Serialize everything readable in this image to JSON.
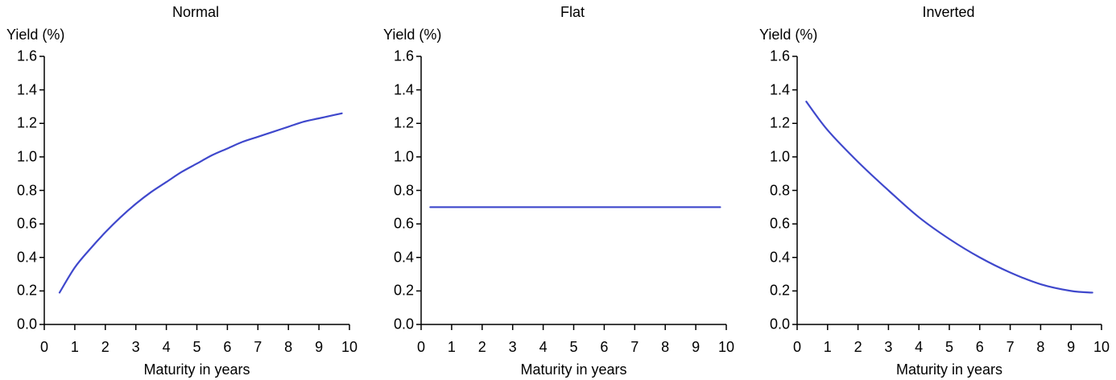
{
  "chart_data": [
    {
      "type": "line",
      "title": "Normal",
      "xlabel": "Maturity in years",
      "ylabel": "Yield (%)",
      "xlim": [
        0,
        10
      ],
      "ylim": [
        0,
        1.6
      ],
      "xticks": [
        "0",
        "1",
        "2",
        "3",
        "4",
        "5",
        "6",
        "7",
        "8",
        "9",
        "10"
      ],
      "yticks": [
        "0.0",
        "0.2",
        "0.4",
        "0.6",
        "0.8",
        "1.0",
        "1.2",
        "1.4",
        "1.6"
      ],
      "grid": false,
      "series": [
        {
          "color": "#3f48cc",
          "x": [
            0.5,
            1,
            1.5,
            2,
            2.5,
            3,
            3.5,
            4,
            4.5,
            5,
            5.5,
            6,
            6.5,
            7,
            7.5,
            8,
            8.5,
            9,
            9.5,
            9.75
          ],
          "y": [
            0.19,
            0.34,
            0.45,
            0.55,
            0.64,
            0.72,
            0.79,
            0.85,
            0.91,
            0.96,
            1.01,
            1.05,
            1.09,
            1.12,
            1.15,
            1.18,
            1.21,
            1.23,
            1.25,
            1.26
          ]
        }
      ]
    },
    {
      "type": "line",
      "title": "Flat",
      "xlabel": "Maturity in years",
      "ylabel": "Yield (%)",
      "xlim": [
        0,
        10
      ],
      "ylim": [
        0,
        1.6
      ],
      "xticks": [
        "0",
        "1",
        "2",
        "3",
        "4",
        "5",
        "6",
        "7",
        "8",
        "9",
        "10"
      ],
      "yticks": [
        "0.0",
        "0.2",
        "0.4",
        "0.6",
        "0.8",
        "1.0",
        "1.2",
        "1.4",
        "1.6"
      ],
      "grid": false,
      "series": [
        {
          "color": "#3f48cc",
          "x": [
            0.3,
            9.8
          ],
          "y": [
            0.7,
            0.7
          ]
        }
      ]
    },
    {
      "type": "line",
      "title": "Inverted",
      "xlabel": "Maturity in years",
      "ylabel": "Yield (%)",
      "xlim": [
        0,
        10
      ],
      "ylim": [
        0,
        1.6
      ],
      "xticks": [
        "0",
        "1",
        "2",
        "3",
        "4",
        "5",
        "6",
        "7",
        "8",
        "9",
        "10"
      ],
      "yticks": [
        "0.0",
        "0.2",
        "0.4",
        "0.6",
        "0.8",
        "1.0",
        "1.2",
        "1.4",
        "1.6"
      ],
      "grid": false,
      "series": [
        {
          "color": "#3f48cc",
          "x": [
            0.3,
            1,
            2,
            3,
            4,
            5,
            6,
            7,
            8,
            9,
            9.7
          ],
          "y": [
            1.33,
            1.16,
            0.97,
            0.8,
            0.64,
            0.51,
            0.4,
            0.31,
            0.24,
            0.2,
            0.19
          ]
        }
      ]
    }
  ]
}
